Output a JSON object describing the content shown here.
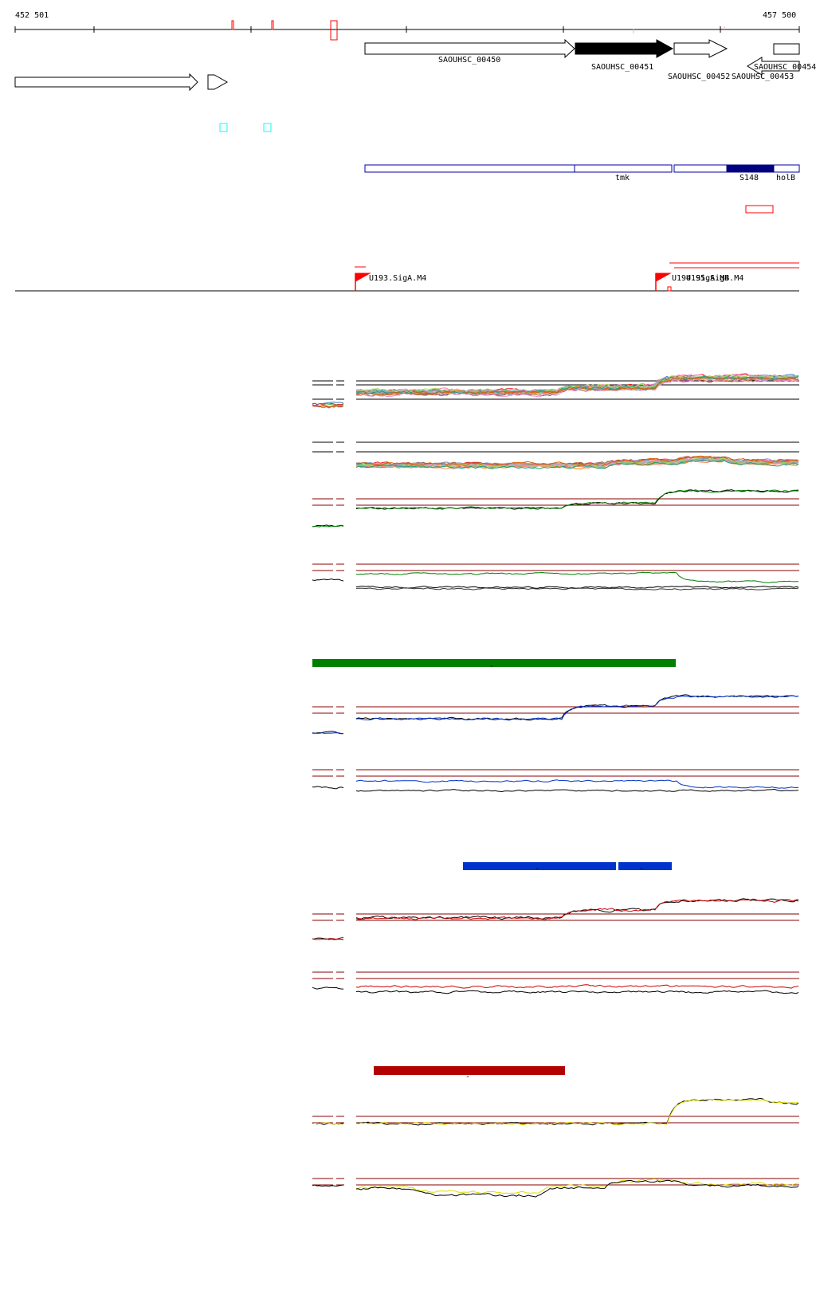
{
  "coordinates": {
    "start_label": "452 501",
    "end_label": "457 500"
  },
  "genes": [
    {
      "id": "gene-SAOUHSC_00450",
      "label": "SAOUHSC_00450",
      "strand": "+",
      "filled": false
    },
    {
      "id": "gene-SAOUHSC_00451",
      "label": "SAOUHSC_00451",
      "strand": "+",
      "filled": true
    },
    {
      "id": "gene-SAOUHSC_00452",
      "label": "SAOUHSC_00452",
      "strand": "+",
      "filled": false
    },
    {
      "id": "gene-SAOUHSC_00453",
      "label": "SAOUHSC_00453",
      "strand": "-",
      "filled": false
    },
    {
      "id": "gene-SAOUHSC_00454",
      "label": "SAOUHSC_00454",
      "strand": "+",
      "filled": false
    }
  ],
  "operons": [
    {
      "label": "tmk"
    },
    {
      "label": "S148"
    },
    {
      "label": "holB"
    }
  ],
  "promoters": [
    {
      "label": "U193.SigA.M4"
    },
    {
      "label": "U194.SigA.M4"
    },
    {
      "label": "U195.SigB.M4"
    }
  ],
  "condition_bars": [
    {
      "color": "#008000",
      "label": "-"
    },
    {
      "color": "#0033cc",
      "label": "-"
    },
    {
      "color": "#0033cc",
      "label": "-"
    },
    {
      "color": "#b30000",
      "label": "-"
    }
  ],
  "colors": {
    "gene_outline": "#000000",
    "operon_outline": "#0000aa",
    "operon_fill": "#000080",
    "promoter": "#ff0000",
    "tss_marker": "#00ffff",
    "threshold_line": "#8b0000",
    "profile_green": "#008000",
    "profile_blue": "#0033cc",
    "profile_red": "#cc0000",
    "profile_yellow": "#dddd00"
  }
}
